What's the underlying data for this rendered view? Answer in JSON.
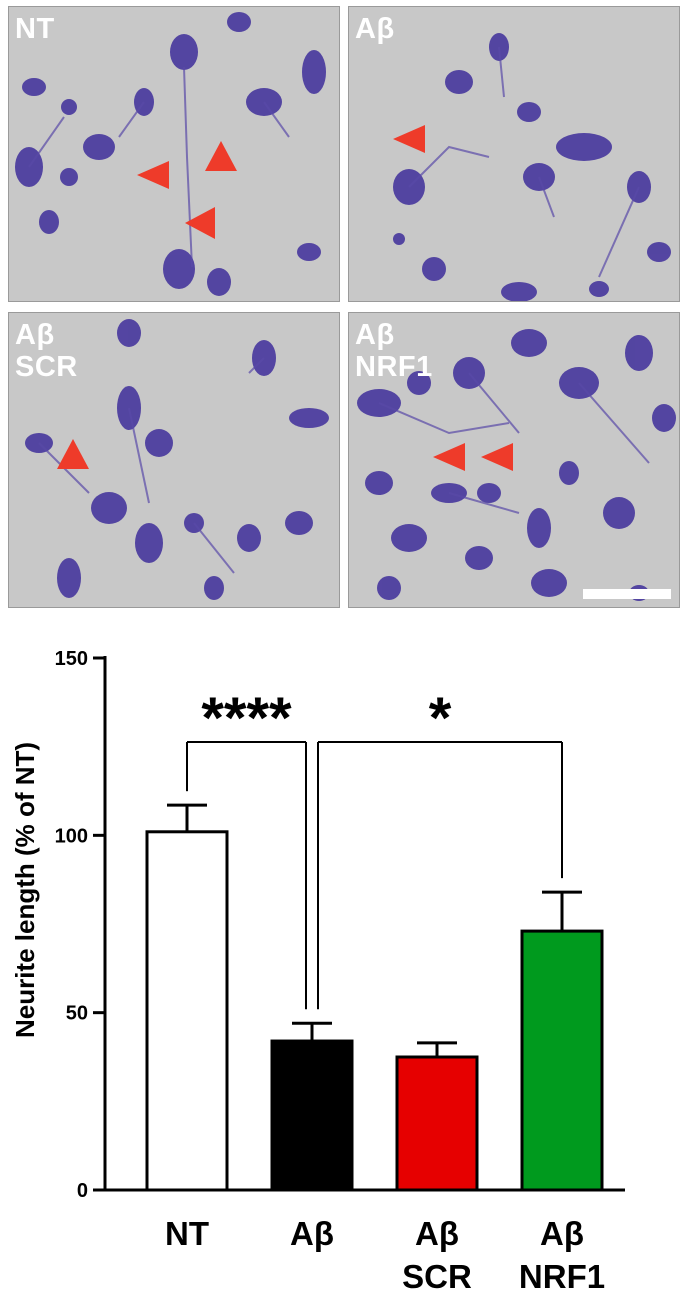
{
  "panels": [
    {
      "id": "nt",
      "lines": [
        "NT"
      ],
      "arrows": 3
    },
    {
      "id": "ab",
      "lines": [
        "Aβ"
      ],
      "arrows": 1
    },
    {
      "id": "ab-scr",
      "lines": [
        "Aβ",
        "SCR"
      ],
      "arrows": 1
    },
    {
      "id": "ab-nrf1",
      "lines": [
        "Aβ",
        "NRF1"
      ],
      "arrows": 2
    }
  ],
  "colors": {
    "cell": "#4a3a9e",
    "cell_light": "#8a6fbf",
    "background": "#c8c8c8",
    "arrow": "#ee3b2a"
  },
  "chart_data": {
    "type": "bar",
    "categories": [
      [
        "NT"
      ],
      [
        "Aβ"
      ],
      [
        "Aβ",
        "SCR"
      ],
      [
        "Aβ",
        "NRF1"
      ]
    ],
    "values": [
      101,
      42,
      37.5,
      73
    ],
    "errors": [
      7.5,
      5,
      4,
      11
    ],
    "bar_colors": [
      "#ffffff",
      "#000000",
      "#e60000",
      "#009a1e"
    ],
    "ylabel": "Neurite length (% of NT)",
    "ylim": [
      0,
      150
    ],
    "yticks": [
      0,
      50,
      100,
      150
    ],
    "significance": [
      {
        "from": 0,
        "to": 1,
        "label": "****"
      },
      {
        "from": 1,
        "to": 3,
        "label": "*"
      }
    ]
  }
}
